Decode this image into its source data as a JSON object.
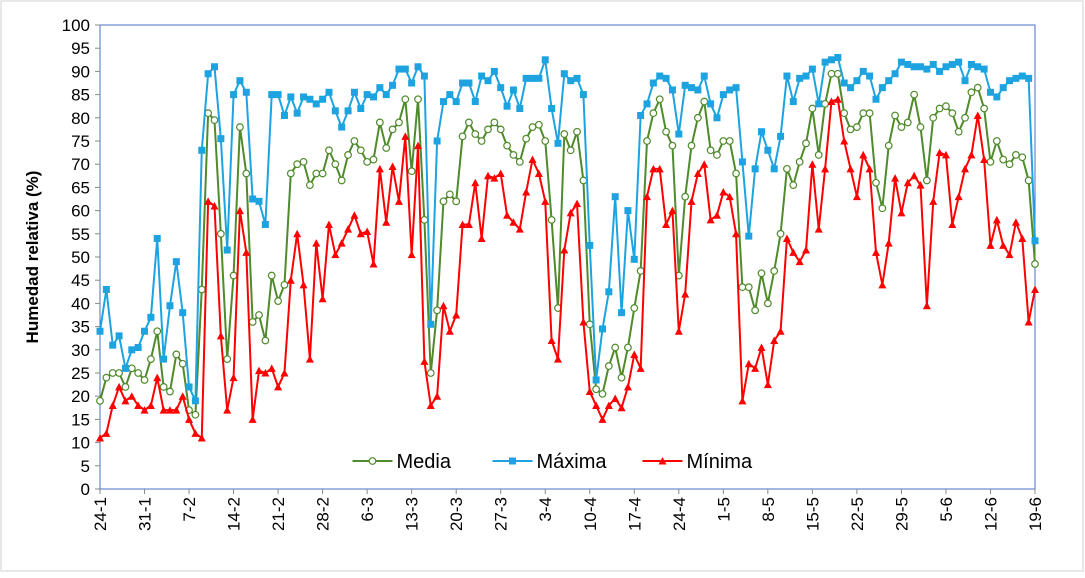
{
  "chart_data": {
    "type": "line",
    "y_label": "Humedad relativa (%)",
    "categories": [
      "24-1",
      null,
      null,
      null,
      null,
      null,
      null,
      "31-1",
      null,
      null,
      null,
      null,
      null,
      null,
      "7-2",
      null,
      null,
      null,
      null,
      null,
      null,
      "14-2",
      null,
      null,
      null,
      null,
      null,
      null,
      "21-2",
      null,
      null,
      null,
      null,
      null,
      null,
      "28-2",
      null,
      null,
      null,
      null,
      null,
      null,
      "6-3",
      null,
      null,
      null,
      null,
      null,
      null,
      "13-3",
      null,
      null,
      null,
      null,
      null,
      null,
      "20-3",
      null,
      null,
      null,
      null,
      null,
      null,
      "27-3",
      null,
      null,
      null,
      null,
      null,
      null,
      "3-4",
      null,
      null,
      null,
      null,
      null,
      null,
      "10-4",
      null,
      null,
      null,
      null,
      null,
      null,
      "17-4",
      null,
      null,
      null,
      null,
      null,
      null,
      "24-4",
      null,
      null,
      null,
      null,
      null,
      null,
      "1-5",
      null,
      null,
      null,
      null,
      null,
      null,
      "8-5",
      null,
      null,
      null,
      null,
      null,
      null,
      "15-5",
      null,
      null,
      null,
      null,
      null,
      null,
      "22-5",
      null,
      null,
      null,
      null,
      null,
      null,
      "29-5",
      null,
      null,
      null,
      null,
      null,
      null,
      "5-6",
      null,
      null,
      null,
      null,
      null,
      null,
      "12-6",
      null,
      null,
      null,
      null,
      null,
      null,
      "19-6"
    ],
    "series": [
      {
        "name": "Media",
        "color": "#4f8a2b",
        "marker": "circle",
        "values": [
          19,
          24,
          25,
          25,
          22,
          26,
          25,
          23.5,
          28,
          34,
          22,
          21,
          29,
          27,
          17,
          16,
          43,
          81,
          79.5,
          55,
          28,
          46,
          78,
          68,
          36,
          37.5,
          32,
          46,
          40.5,
          44,
          68,
          70,
          70.5,
          65.5,
          68,
          68,
          73,
          70,
          66.5,
          72,
          75,
          73,
          70.5,
          71,
          79,
          73.5,
          77.5,
          79,
          84,
          68.5,
          84,
          58,
          25,
          38.5,
          62,
          63.5,
          62,
          76,
          79,
          76.5,
          75,
          77.5,
          79,
          77.5,
          74,
          72,
          70.5,
          75.5,
          78,
          78.5,
          75,
          58,
          39,
          76.5,
          73,
          77,
          66.5,
          35.5,
          21.5,
          20.5,
          26.5,
          30.5,
          24,
          30.5,
          39,
          47,
          75,
          81,
          84,
          77,
          74,
          46,
          63,
          74,
          80,
          83.5,
          73,
          72,
          75,
          75,
          68,
          43.5,
          43.5,
          38.5,
          46.5,
          40,
          47,
          55,
          69,
          65.5,
          70.5,
          74.5,
          82,
          72,
          83,
          89.5,
          89.5,
          81,
          77.5,
          78,
          81,
          81,
          66,
          60.5,
          74,
          80.5,
          78,
          79,
          85,
          78,
          66.5,
          80,
          82,
          82.5,
          81,
          77,
          80,
          85.5,
          86.5,
          82,
          70.5,
          75,
          71,
          70,
          72,
          71.5,
          66.5,
          48.5
        ]
      },
      {
        "name": "Máxima",
        "color": "#1ca3e0",
        "marker": "square",
        "values": [
          34,
          43,
          31,
          33,
          26,
          30,
          30.5,
          34,
          37,
          54,
          28,
          39.5,
          49,
          38,
          22,
          19,
          73,
          89.5,
          91,
          75.5,
          51.5,
          85,
          88,
          85.5,
          62.5,
          62,
          57,
          85,
          85,
          80.5,
          84.5,
          81,
          84.5,
          84,
          83,
          84,
          85.5,
          81.5,
          78,
          81.5,
          85.5,
          82,
          85,
          84.5,
          86.5,
          85,
          87,
          90.5,
          90.5,
          87.5,
          91,
          89,
          35.5,
          75,
          83.5,
          85,
          83.5,
          87.5,
          87.5,
          83.5,
          89,
          88,
          90,
          86.5,
          82.5,
          86,
          82,
          88.5,
          88.5,
          88.5,
          92.5,
          82,
          74.5,
          89.5,
          88,
          88.5,
          85,
          52.5,
          23.5,
          34.5,
          42.5,
          63,
          38,
          60,
          49.5,
          80.5,
          83,
          87.5,
          89,
          88.5,
          86,
          76.5,
          87,
          86.5,
          86,
          89,
          83,
          80,
          85,
          86,
          86.5,
          70.5,
          54.5,
          69,
          77,
          73,
          69,
          76,
          89,
          83.5,
          88.5,
          89,
          90.5,
          83,
          92,
          92.5,
          93,
          87.5,
          86.5,
          88,
          90,
          89,
          84,
          86.5,
          88,
          89.5,
          92,
          91.5,
          91,
          91,
          90.5,
          91.5,
          90,
          91,
          91.5,
          92,
          88,
          91.5,
          91,
          90.5,
          85.5,
          84.5,
          86.5,
          88,
          88.5,
          89,
          88.5,
          53.5
        ]
      },
      {
        "name": "Mínima",
        "color": "#ff0000",
        "marker": "triangle",
        "values": [
          11,
          12,
          18,
          22,
          19,
          20,
          18,
          17,
          18,
          24,
          17,
          17,
          17,
          20,
          15,
          12,
          11,
          62,
          61,
          33,
          17,
          24,
          60,
          51,
          15,
          25.5,
          25,
          26,
          22,
          25,
          45,
          55,
          44,
          28,
          53,
          41,
          57,
          50.5,
          53,
          56,
          59,
          55,
          55.5,
          48.5,
          69,
          57.5,
          69.5,
          62,
          76,
          50.5,
          74,
          27.5,
          18,
          20,
          39.5,
          34,
          37.5,
          57,
          57,
          66,
          54,
          67.5,
          67,
          68,
          59,
          57.5,
          56,
          64,
          71,
          68,
          62,
          32,
          28,
          51.5,
          59.5,
          61.5,
          36,
          21,
          18,
          15,
          18,
          19.5,
          17.5,
          22,
          29,
          26,
          63,
          69,
          69,
          57,
          60,
          34,
          42,
          62,
          68,
          70,
          58,
          59,
          64,
          63,
          55,
          19,
          27,
          26,
          30.5,
          22.5,
          32,
          34,
          54,
          51,
          49,
          51.5,
          70,
          56,
          69,
          83.5,
          84,
          75,
          69,
          63,
          72,
          69,
          51,
          44,
          53,
          67,
          59.5,
          66,
          67.5,
          65.5,
          39.5,
          62,
          72.5,
          72,
          57,
          63,
          69,
          72,
          80.5,
          71,
          52.5,
          58,
          52.5,
          50.5,
          57.5,
          54,
          36,
          43
        ]
      }
    ],
    "ylim": [
      0,
      100
    ],
    "yticks": [
      0,
      5,
      10,
      15,
      20,
      25,
      30,
      35,
      40,
      45,
      50,
      55,
      60,
      65,
      70,
      75,
      80,
      85,
      90,
      95,
      100
    ],
    "grid": false,
    "legend": "bottom"
  }
}
